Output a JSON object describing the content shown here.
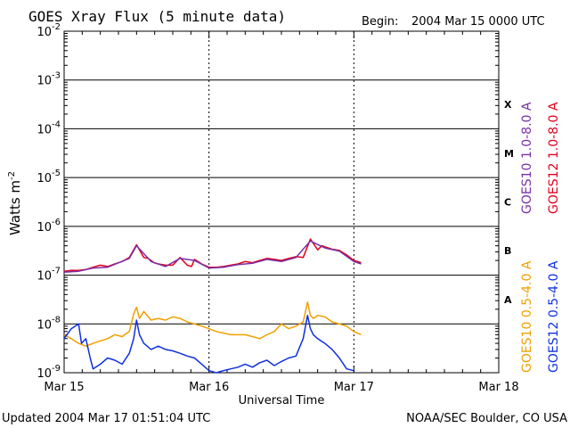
{
  "chart_data": {
    "type": "line",
    "title": "GOES Xray Flux (5 minute data)",
    "begin_label": "Begin:",
    "begin_value": "2004 Mar 15 0000 UTC",
    "xlabel": "Universal Time",
    "ylabel": "Watts m",
    "ylabel_sup": "-2",
    "y_scale": "log",
    "ylim": [
      1e-09,
      0.01
    ],
    "xlim": [
      0,
      3
    ],
    "grid": true,
    "x_ticks": [
      {
        "value": 0,
        "label": "Mar 15"
      },
      {
        "value": 1,
        "label": "Mar 16"
      },
      {
        "value": 2,
        "label": "Mar 17"
      },
      {
        "value": 3,
        "label": "Mar 18"
      }
    ],
    "y_ticks": [
      {
        "exp": -2,
        "base": "10",
        "sup": "-2"
      },
      {
        "exp": -3,
        "base": "10",
        "sup": "-3"
      },
      {
        "exp": -4,
        "base": "10",
        "sup": "-4"
      },
      {
        "exp": -5,
        "base": "10",
        "sup": "-5"
      },
      {
        "exp": -6,
        "base": "10",
        "sup": "-6"
      },
      {
        "exp": -7,
        "base": "10",
        "sup": "-7"
      },
      {
        "exp": -8,
        "base": "10",
        "sup": "-8"
      },
      {
        "exp": -9,
        "base": "10",
        "sup": "-9"
      }
    ],
    "flare_classes": [
      {
        "label": "X",
        "exp": -3.5
      },
      {
        "label": "M",
        "exp": -4.5
      },
      {
        "label": "C",
        "exp": -5.5
      },
      {
        "label": "B",
        "exp": -6.5
      },
      {
        "label": "A",
        "exp": -7.5
      }
    ],
    "legend": [
      {
        "name": "GOES10 1.0-8.0 A",
        "color": "#7a2fa8",
        "group": "long"
      },
      {
        "name": "GOES12 1.0-8.0 A",
        "color": "#e0001b",
        "group": "long"
      },
      {
        "name": "GOES10 0.5-4.0 A",
        "color": "#f0a000",
        "group": "short"
      },
      {
        "name": "GOES12 0.5-4.0 A",
        "color": "#1030e0",
        "group": "short"
      }
    ],
    "series": [
      {
        "name": "GOES12 1.0-8.0 A",
        "color": "#e0001b",
        "x": [
          0.0,
          0.05,
          0.1,
          0.15,
          0.2,
          0.25,
          0.3,
          0.35,
          0.4,
          0.45,
          0.5,
          0.55,
          0.58,
          0.6,
          0.62,
          0.65,
          0.7,
          0.75,
          0.8,
          0.85,
          0.88,
          0.9,
          0.95,
          1.0,
          1.05,
          1.1,
          1.15,
          1.2,
          1.25,
          1.3,
          1.35,
          1.4,
          1.45,
          1.5,
          1.55,
          1.6,
          1.65,
          1.7,
          1.75,
          1.78,
          1.8,
          1.85,
          1.9,
          1.95,
          2.0,
          2.05
        ],
        "y": [
          1.2e-07,
          1.25e-07,
          1.25e-07,
          1.3e-07,
          1.45e-07,
          1.6e-07,
          1.5e-07,
          1.7e-07,
          1.9e-07,
          2.3e-07,
          4.2e-07,
          2.3e-07,
          2.2e-07,
          2e-07,
          1.8e-07,
          1.7e-07,
          1.6e-07,
          1.6e-07,
          2.3e-07,
          1.6e-07,
          1.5e-07,
          2.1e-07,
          1.7e-07,
          1.45e-07,
          1.45e-07,
          1.5e-07,
          1.6e-07,
          1.7e-07,
          1.9e-07,
          1.8e-07,
          2e-07,
          2.2e-07,
          2.1e-07,
          2e-07,
          2.2e-07,
          2.4e-07,
          2.3e-07,
          5.5e-07,
          3.3e-07,
          4e-07,
          3.8e-07,
          3.4e-07,
          3.2e-07,
          2.6e-07,
          2e-07,
          1.8e-07
        ]
      },
      {
        "name": "GOES10 1.0-8.0 A",
        "color": "#7a2fa8",
        "x": [
          0.0,
          0.1,
          0.2,
          0.3,
          0.45,
          0.5,
          0.6,
          0.7,
          0.8,
          0.9,
          1.0,
          1.1,
          1.2,
          1.3,
          1.4,
          1.5,
          1.6,
          1.7,
          1.8,
          1.9,
          2.0,
          2.05
        ],
        "y": [
          1.15e-07,
          1.2e-07,
          1.4e-07,
          1.45e-07,
          2.2e-07,
          4e-07,
          1.9e-07,
          1.5e-07,
          2.2e-07,
          2e-07,
          1.4e-07,
          1.45e-07,
          1.65e-07,
          1.75e-07,
          2.1e-07,
          1.9e-07,
          2.3e-07,
          5e-07,
          3.6e-07,
          3.1e-07,
          1.9e-07,
          1.7e-07
        ]
      },
      {
        "name": "GOES10 0.5-4.0 A",
        "color": "#f0a000",
        "x": [
          0.0,
          0.05,
          0.1,
          0.15,
          0.2,
          0.25,
          0.3,
          0.35,
          0.4,
          0.45,
          0.48,
          0.5,
          0.52,
          0.55,
          0.6,
          0.65,
          0.7,
          0.75,
          0.8,
          0.85,
          0.9,
          0.95,
          1.0,
          1.05,
          1.1,
          1.15,
          1.2,
          1.25,
          1.3,
          1.35,
          1.4,
          1.45,
          1.5,
          1.55,
          1.6,
          1.65,
          1.68,
          1.7,
          1.72,
          1.75,
          1.8,
          1.85,
          1.9,
          1.95,
          2.0,
          2.05
        ],
        "y": [
          6e-09,
          5e-09,
          4e-09,
          3.5e-09,
          4e-09,
          4.5e-09,
          5e-09,
          6e-09,
          5.5e-09,
          7e-09,
          1.6e-08,
          2.2e-08,
          1.3e-08,
          1.8e-08,
          1.2e-08,
          1.3e-08,
          1.2e-08,
          1.4e-08,
          1.3e-08,
          1.1e-08,
          1e-08,
          9e-09,
          8e-09,
          7e-09,
          6.5e-09,
          6e-09,
          6e-09,
          6e-09,
          5.5e-09,
          5e-09,
          6e-09,
          7e-09,
          1e-08,
          8e-09,
          9e-09,
          1.1e-08,
          2.8e-08,
          1.5e-08,
          1.3e-08,
          1.5e-08,
          1.4e-08,
          1.1e-08,
          1e-08,
          9e-09,
          7e-09,
          6e-09
        ]
      },
      {
        "name": "GOES12 0.5-4.0 A",
        "color": "#1030e0",
        "x": [
          0.0,
          0.05,
          0.1,
          0.12,
          0.15,
          0.18,
          0.2,
          0.25,
          0.3,
          0.35,
          0.4,
          0.45,
          0.48,
          0.5,
          0.52,
          0.55,
          0.6,
          0.65,
          0.7,
          0.75,
          0.8,
          0.85,
          0.9,
          0.95,
          1.0,
          1.05,
          1.1,
          1.15,
          1.2,
          1.25,
          1.3,
          1.35,
          1.4,
          1.45,
          1.5,
          1.55,
          1.6,
          1.65,
          1.68,
          1.7,
          1.72,
          1.75,
          1.8,
          1.85,
          1.9,
          1.95,
          2.0
        ],
        "y": [
          5e-09,
          8e-09,
          1e-08,
          4e-09,
          5e-09,
          2e-09,
          1.2e-09,
          1.5e-09,
          2e-09,
          1.8e-09,
          1.5e-09,
          2.5e-09,
          5e-09,
          1.2e-08,
          6e-09,
          4e-09,
          3e-09,
          3.5e-09,
          3e-09,
          2.8e-09,
          2.5e-09,
          2.2e-09,
          2e-09,
          1.5e-09,
          1.1e-09,
          1e-09,
          1.1e-09,
          1.2e-09,
          1.3e-09,
          1.5e-09,
          1.3e-09,
          1.6e-09,
          1.8e-09,
          1.4e-09,
          1.7e-09,
          2e-09,
          2.2e-09,
          5e-09,
          1.5e-08,
          8e-09,
          6e-09,
          5e-09,
          4e-09,
          3e-09,
          2e-09,
          1.2e-09,
          1.1e-09
        ]
      }
    ]
  },
  "footer": {
    "updated": "Updated 2004 Mar 17 01:51:04 UTC",
    "credit": "NOAA/SEC Boulder, CO USA"
  }
}
